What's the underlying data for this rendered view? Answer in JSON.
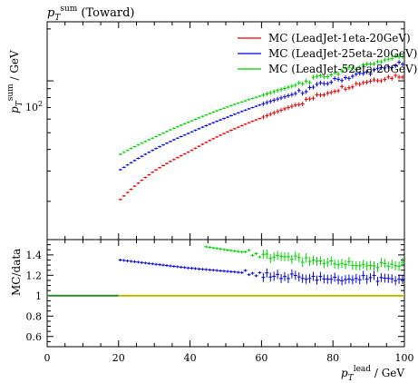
{
  "chart_data": {
    "type": "scatter",
    "title": "p_T^sum (Toward)",
    "title_parts": {
      "main": "p",
      "sub": "T",
      "sup": "sum",
      "rest": " (Toward)"
    },
    "ylabel": "p_T^sum / GeV",
    "ylabel_parts": {
      "main": "p",
      "sub": "T",
      "sup": "sum",
      "rest": " / GeV"
    },
    "xlabel": "p_T^lead / GeV",
    "xlabel_parts": {
      "main": "p",
      "sub": "T",
      "sup": "lead",
      "rest": " / GeV"
    },
    "ratio_ylabel": "MC/data",
    "xlim": [
      0,
      100
    ],
    "ylim": [
      12,
      220
    ],
    "yscale": "log",
    "ratio_ylim": [
      0.5,
      1.55
    ],
    "x_ticks": [
      "0",
      "20",
      "40",
      "60",
      "80",
      "100"
    ],
    "x_tick_values": [
      0,
      20,
      40,
      60,
      80,
      100
    ],
    "y_tick_label": "10",
    "y_tick_label_sup": "2",
    "y_tick_value": 100,
    "ratio_ticks": [
      "0.6",
      "0.8",
      "1",
      "1.2",
      "1.4"
    ],
    "ratio_tick_values": [
      0.6,
      0.8,
      1.0,
      1.2,
      1.4
    ],
    "legend_position": "top-right",
    "reference_band_color": "#d4d400",
    "reference_line_color": "#2a8a2a",
    "series": [
      {
        "name": "MC (LeadJet-1eta-20GeV)",
        "color": "#e00000",
        "x_start": 20.5,
        "x_end": 99.5,
        "n_points": 80,
        "y_at_x": [
          [
            20.5,
            20.5
          ],
          [
            30,
            30
          ],
          [
            40,
            39
          ],
          [
            50,
            50
          ],
          [
            60,
            61
          ],
          [
            70,
            73
          ],
          [
            80,
            88
          ],
          [
            90,
            100
          ],
          [
            99.5,
            108
          ]
        ],
        "ratio_at_x": []
      },
      {
        "name": "MC (LeadJet-25eta-20GeV)",
        "color": "#0000e0",
        "x_start": 20.5,
        "x_end": 99.5,
        "n_points": 80,
        "y_at_x": [
          [
            20.5,
            30.5
          ],
          [
            30,
            40
          ],
          [
            40,
            50
          ],
          [
            50,
            61
          ],
          [
            60,
            73
          ],
          [
            70,
            85
          ],
          [
            80,
            100
          ],
          [
            90,
            112
          ],
          [
            99.5,
            126
          ]
        ],
        "ratio_at_x": [
          [
            20.5,
            1.35
          ],
          [
            30,
            1.31
          ],
          [
            40,
            1.27
          ],
          [
            50,
            1.24
          ],
          [
            60,
            1.21
          ],
          [
            70,
            1.18
          ],
          [
            80,
            1.16
          ],
          [
            90,
            1.17
          ],
          [
            99.5,
            1.17
          ]
        ]
      },
      {
        "name": "MC (LeadJet-52eta-20GeV)",
        "color": "#00d000",
        "x_start": 20.5,
        "x_end": 99.5,
        "n_points": 80,
        "y_at_x": [
          [
            20.5,
            37.5
          ],
          [
            30,
            47
          ],
          [
            40,
            58
          ],
          [
            50,
            70
          ],
          [
            60,
            82
          ],
          [
            70,
            95
          ],
          [
            80,
            110
          ],
          [
            90,
            125
          ],
          [
            99.5,
            140
          ]
        ],
        "ratio_at_x": [
          [
            44.5,
            1.48
          ],
          [
            50,
            1.45
          ],
          [
            60,
            1.4
          ],
          [
            70,
            1.36
          ],
          [
            80,
            1.32
          ],
          [
            90,
            1.3
          ],
          [
            99.5,
            1.3
          ]
        ]
      }
    ]
  }
}
